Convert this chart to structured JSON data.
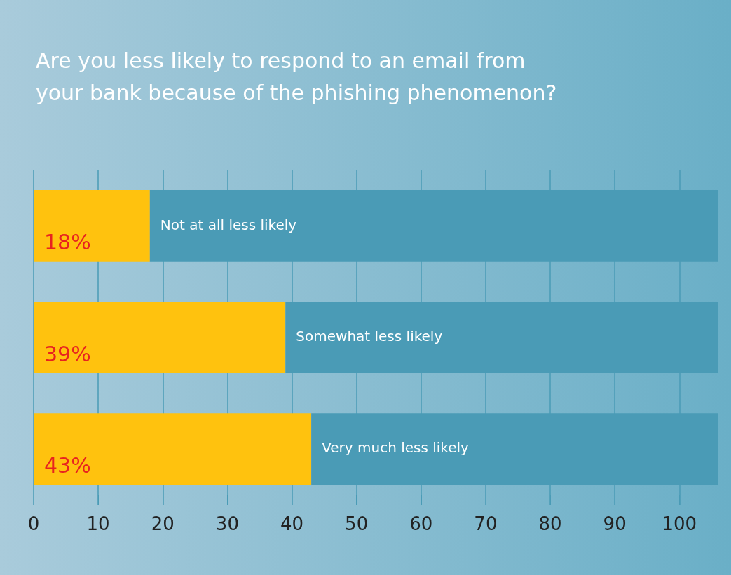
{
  "chart_data": {
    "type": "bar",
    "orientation": "horizontal",
    "stacked": true,
    "title": "Are you less likely to respond to an email from\nyour bank because of the phishing phenomenon?",
    "categories": [
      "Not at all less likely",
      "Somewhat less likely",
      "Very much less likely"
    ],
    "series": [
      {
        "color": "#ffc20e",
        "values": [
          18,
          39,
          43
        ],
        "value_labels": [
          "18%",
          "39%",
          "43%"
        ]
      },
      {
        "color": "#4a9bb6",
        "values": [
          88,
          67,
          63
        ]
      }
    ],
    "xlim": [
      0,
      108
    ],
    "xticks": [
      0,
      10,
      20,
      30,
      40,
      50,
      60,
      70,
      80,
      90,
      100
    ],
    "grid": "x",
    "tick_labels": "x"
  }
}
